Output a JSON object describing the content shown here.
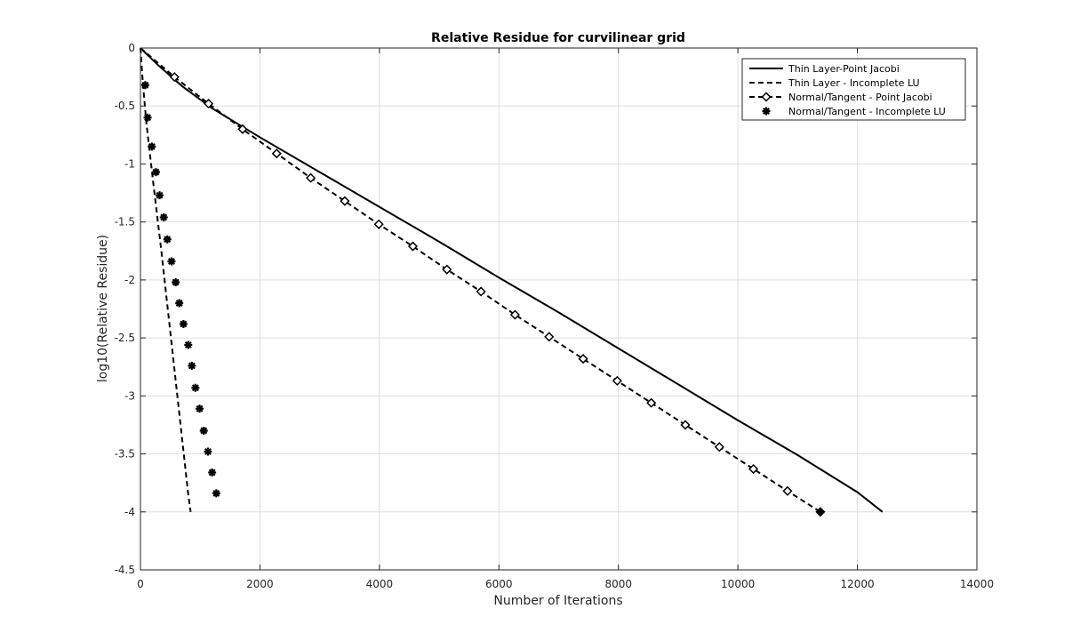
{
  "chart_data": {
    "type": "line",
    "title": "Relative Residue for curvilinear grid",
    "xlabel": "Number of Iterations",
    "ylabel": "log10(Relative Residue)",
    "xlim": [
      0,
      14000
    ],
    "ylim": [
      -4.5,
      0
    ],
    "xticks": [
      0,
      2000,
      4000,
      6000,
      8000,
      10000,
      12000,
      14000
    ],
    "xtick_labels": [
      "0",
      "2000",
      "4000",
      "6000",
      "8000",
      "10000",
      "12000",
      "14000"
    ],
    "yticks": [
      0,
      -0.5,
      -1,
      -1.5,
      -2,
      -2.5,
      -3,
      -3.5,
      -4,
      -4.5
    ],
    "ytick_labels": [
      "0",
      "-0.5",
      "-1",
      "-1.5",
      "-2",
      "-2.5",
      "-3",
      "-3.5",
      "-4",
      "-4.5"
    ],
    "grid": true,
    "legend_position": "top-right",
    "series": [
      {
        "name": "Thin Layer-Point Jacobi",
        "style": "solid",
        "marker": "none",
        "x": [
          0,
          300,
          700,
          1200,
          2000,
          3000,
          4000,
          5000,
          6000,
          7000,
          8000,
          9000,
          10000,
          11000,
          12000,
          12420
        ],
        "y": [
          0,
          -0.15,
          -0.33,
          -0.52,
          -0.77,
          -1.07,
          -1.37,
          -1.67,
          -1.98,
          -2.28,
          -2.59,
          -2.9,
          -3.21,
          -3.51,
          -3.83,
          -4.0
        ]
      },
      {
        "name": "Thin Layer - Incomplete LU",
        "style": "dashed",
        "marker": "none",
        "x": [
          0,
          40,
          100,
          200,
          350,
          500,
          650,
          800,
          840
        ],
        "y": [
          0,
          -0.3,
          -0.65,
          -1.1,
          -1.75,
          -2.45,
          -3.15,
          -3.85,
          -4.0
        ]
      },
      {
        "name": "Normal/Tangent - Point Jacobi",
        "style": "dashed",
        "marker": "diamond",
        "x": [
          0,
          570,
          1140,
          1710,
          2280,
          2850,
          3420,
          3990,
          4560,
          5130,
          5700,
          6270,
          6840,
          7410,
          7980,
          8550,
          9120,
          9690,
          10260,
          10830,
          11380
        ],
        "y": [
          0,
          -0.25,
          -0.48,
          -0.7,
          -0.91,
          -1.12,
          -1.32,
          -1.52,
          -1.71,
          -1.91,
          -2.1,
          -2.3,
          -2.49,
          -2.68,
          -2.87,
          -3.06,
          -3.25,
          -3.44,
          -3.63,
          -3.82,
          -4.0
        ]
      },
      {
        "name": "Normal/Tangent - Incomplete LU",
        "style": "none",
        "marker": "star",
        "x": [
          80,
          120,
          190,
          260,
          320,
          390,
          450,
          520,
          590,
          650,
          720,
          800,
          860,
          920,
          990,
          1060,
          1130,
          1200,
          1270
        ],
        "y": [
          -0.32,
          -0.6,
          -0.85,
          -1.07,
          -1.27,
          -1.46,
          -1.65,
          -1.84,
          -2.02,
          -2.2,
          -2.38,
          -2.56,
          -2.74,
          -2.93,
          -3.11,
          -3.3,
          -3.48,
          -3.66,
          -3.84
        ]
      }
    ]
  }
}
